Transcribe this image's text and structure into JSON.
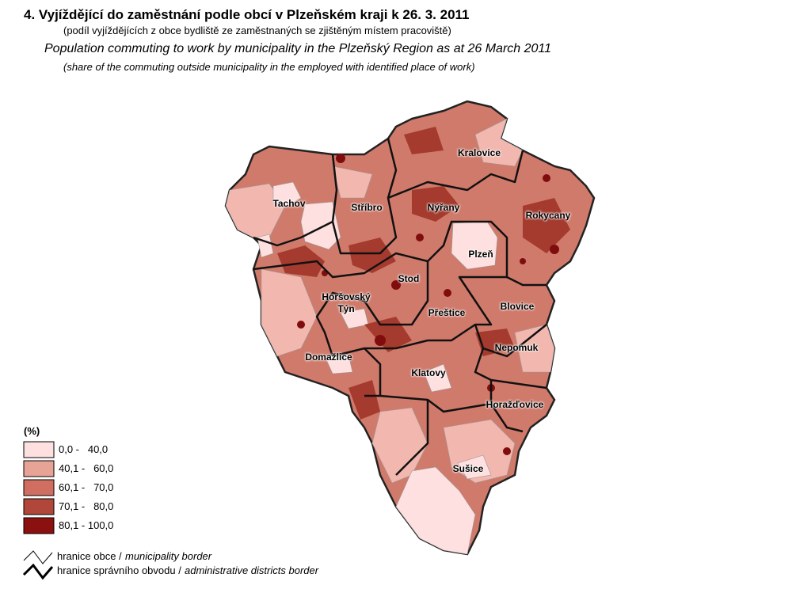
{
  "header": {
    "title": "4. Vyjíždějící do zaměstnání podle obcí v Plzeňském kraji k 26. 3. 2011",
    "subtitle": "(podíl vyjíždějících z obce bydliště ze zaměstnaných se zjištěným místem pracoviště)",
    "title_en": "Population commuting to work by municipality in the Plzeňský Region as at 26 March 2011",
    "subtitle_en": "(share of the commuting outside municipality in the employed with identified place of work)"
  },
  "districts": [
    {
      "label": "Kralovice"
    },
    {
      "label": "Tachov"
    },
    {
      "label": "Stříbro"
    },
    {
      "label": "Nýřany"
    },
    {
      "label": "Rokycany"
    },
    {
      "label": "Plzeň"
    },
    {
      "label": "Stod"
    },
    {
      "label": "Horšovský Týn"
    },
    {
      "label": "Přeštice"
    },
    {
      "label": "Blovice"
    },
    {
      "label": "Nepomuk"
    },
    {
      "label": "Domažlice"
    },
    {
      "label": "Klatovy"
    },
    {
      "label": "Horažďovice"
    },
    {
      "label": "Sušice"
    }
  ],
  "legend": {
    "unit": "(%)",
    "classes": [
      {
        "label": "0,0 -   40,0",
        "color": "#fde0df"
      },
      {
        "label": "40,1 -   60,0",
        "color": "#e8a397"
      },
      {
        "label": "60,1 -   70,0",
        "color": "#d06f61"
      },
      {
        "label": "70,1 -   80,0",
        "color": "#b0473a"
      },
      {
        "label": "80,1 - 100,0",
        "color": "#8b1010"
      }
    ],
    "borders": [
      {
        "label": "hranice obce /",
        "label_en": "municipality border"
      },
      {
        "label": "hranice správního obvodu /",
        "label_en": "administrative districts border"
      }
    ]
  }
}
